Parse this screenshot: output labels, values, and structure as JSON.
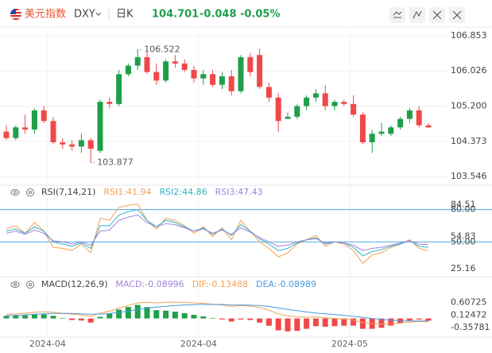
{
  "header": {
    "name": "美元指数",
    "symbol": "DXY",
    "period": "日K",
    "price": "104.701",
    "change": "-0.048",
    "change_pct": "-0.05%"
  },
  "chart_data": [
    {
      "type": "candlestick",
      "up_color": "#1f9f4a",
      "down_color": "#f04848",
      "open": [
        104.6,
        104.45,
        104.7,
        104.65,
        105.1,
        104.85,
        104.35,
        104.3,
        104.25,
        104.4,
        104.15,
        105.3,
        105.25,
        105.95,
        106.15,
        106.35,
        106.0,
        105.8,
        106.25,
        106.2,
        106.05,
        105.85,
        105.95,
        105.7,
        105.9,
        105.55,
        106.35,
        106.4,
        105.65,
        105.4,
        104.9,
        104.95,
        105.2,
        105.4,
        105.5,
        105.2,
        105.3,
        105.25,
        105.0,
        104.35,
        104.55,
        104.55,
        104.7,
        104.9,
        105.1,
        104.75
      ],
      "high": [
        104.75,
        104.75,
        105.0,
        105.15,
        105.2,
        104.95,
        104.45,
        104.4,
        104.55,
        104.45,
        105.35,
        105.4,
        106.05,
        106.2,
        106.522,
        106.45,
        106.2,
        106.3,
        106.4,
        106.3,
        106.15,
        106.05,
        106.05,
        106.0,
        106.05,
        106.4,
        106.45,
        106.55,
        105.75,
        105.5,
        105.05,
        105.25,
        105.45,
        105.6,
        105.7,
        105.35,
        105.35,
        105.45,
        105.05,
        104.65,
        104.8,
        104.75,
        104.95,
        105.15,
        105.2,
        104.8
      ],
      "low": [
        104.4,
        104.4,
        104.55,
        104.55,
        104.8,
        104.3,
        104.2,
        104.15,
        104.1,
        103.877,
        104.1,
        105.15,
        105.2,
        105.9,
        106.05,
        105.95,
        105.7,
        105.75,
        106.1,
        106.0,
        105.75,
        105.7,
        105.65,
        105.6,
        105.45,
        105.5,
        105.9,
        105.6,
        105.3,
        104.6,
        104.9,
        104.9,
        105.1,
        105.3,
        105.1,
        105.1,
        105.2,
        104.95,
        104.3,
        104.1,
        104.5,
        104.5,
        104.65,
        104.8,
        104.7,
        104.69
      ],
      "close": [
        104.45,
        104.7,
        104.65,
        105.1,
        104.85,
        104.35,
        104.3,
        104.25,
        104.4,
        104.2,
        105.3,
        105.25,
        105.95,
        106.15,
        106.35,
        106.0,
        105.8,
        106.25,
        106.2,
        106.05,
        105.85,
        105.95,
        105.7,
        105.9,
        105.55,
        106.35,
        106.0,
        105.65,
        105.4,
        104.85,
        104.95,
        105.2,
        105.4,
        105.5,
        105.2,
        105.3,
        105.25,
        105.0,
        104.35,
        104.55,
        104.6,
        104.7,
        104.9,
        105.1,
        104.75,
        104.701
      ],
      "ylim": [
        103.36,
        107.02
      ],
      "yticks": [
        106.853,
        106.026,
        {
          "value": 105.2,
          "label": "105.200"
        },
        104.373,
        103.546
      ],
      "annotations": [
        {
          "label": "106.522",
          "value": 106.522,
          "index": 14
        },
        {
          "label": "103.877",
          "value": 103.877,
          "index": 9
        }
      ],
      "xticks": [
        {
          "value": 4.4,
          "label": "2024-04"
        },
        {
          "value": 20.5,
          "label": "2024-04"
        },
        {
          "value": 36.6,
          "label": "2024-05"
        }
      ],
      "grid": true
    },
    {
      "type": "line",
      "title": "RSI(7,14,21)",
      "ylim": [
        20,
        90
      ],
      "yticks": [
        {
          "value": 80,
          "label": "80.00"
        },
        84.51,
        54.83,
        {
          "value": 50,
          "label": "50.00"
        },
        25.16
      ],
      "ref_lines": [
        80,
        50
      ],
      "ref_color": "#4aa8e8",
      "series": [
        {
          "name": "RSI1:41.94",
          "color": "#f5a050",
          "values": [
            62,
            65,
            58,
            68,
            60,
            45,
            44,
            42,
            48,
            40,
            72,
            70,
            82,
            84,
            85,
            70,
            62,
            72,
            70,
            65,
            58,
            64,
            55,
            63,
            52,
            70,
            60,
            50,
            44,
            36,
            40,
            48,
            52,
            56,
            46,
            50,
            48,
            42,
            30,
            38,
            40,
            45,
            48,
            52,
            44,
            41.94
          ]
        },
        {
          "name": "RSI2:44.86",
          "color": "#2fb3c6",
          "values": [
            60,
            62,
            58,
            64,
            60,
            50,
            48,
            46,
            49,
            44,
            65,
            65,
            75,
            78,
            80,
            70,
            64,
            70,
            68,
            64,
            60,
            63,
            57,
            62,
            56,
            66,
            60,
            53,
            48,
            42,
            44,
            49,
            52,
            54,
            48,
            50,
            49,
            45,
            37,
            41,
            43,
            46,
            48,
            51,
            46,
            44.86
          ]
        },
        {
          "name": "RSI3:47.43",
          "color": "#a083dc",
          "values": [
            58,
            60,
            57,
            61,
            58,
            51,
            50,
            48,
            50,
            47,
            60,
            61,
            70,
            73,
            75,
            68,
            64,
            67,
            66,
            63,
            60,
            62,
            58,
            61,
            57,
            63,
            59,
            54,
            50,
            46,
            47,
            50,
            52,
            53,
            49,
            50,
            49,
            47,
            42,
            44,
            45,
            47,
            49,
            51,
            48,
            47.43
          ]
        }
      ]
    },
    {
      "type": "macd",
      "title": "MACD(12,26,9)",
      "ylim": [
        -0.72,
        1.09
      ],
      "yticks": [
        0.60725,
        0.12472,
        -0.35781
      ],
      "series": [
        {
          "name": "MACD:-0.08996",
          "color": "#a083dc",
          "up_color": "#1f9f4a",
          "down_color": "#f04848",
          "values": [
            0.1,
            0.12,
            0.12,
            0.16,
            0.16,
            0.1,
            0.02,
            -0.06,
            -0.08,
            -0.16,
            0.06,
            0.18,
            0.34,
            0.44,
            0.52,
            0.44,
            0.32,
            0.3,
            0.26,
            0.2,
            0.14,
            0.08,
            0.02,
            -0.04,
            -0.12,
            -0.04,
            -0.06,
            -0.16,
            -0.28,
            -0.46,
            -0.5,
            -0.48,
            -0.4,
            -0.3,
            -0.32,
            -0.3,
            -0.28,
            -0.28,
            -0.4,
            -0.4,
            -0.36,
            -0.28,
            -0.18,
            -0.08,
            -0.04,
            -0.08996
          ]
        },
        {
          "name": "DIF:-0.13488",
          "color": "#f5a050",
          "values": [
            0.15,
            0.18,
            0.2,
            0.24,
            0.26,
            0.24,
            0.2,
            0.16,
            0.14,
            0.08,
            0.2,
            0.28,
            0.4,
            0.5,
            0.6,
            0.62,
            0.6,
            0.62,
            0.63,
            0.62,
            0.6,
            0.58,
            0.54,
            0.52,
            0.46,
            0.5,
            0.48,
            0.42,
            0.32,
            0.18,
            0.1,
            0.06,
            0.05,
            0.06,
            0.02,
            0.0,
            -0.02,
            -0.06,
            -0.16,
            -0.2,
            -0.22,
            -0.21,
            -0.18,
            -0.14,
            -0.12,
            -0.13488
          ]
        },
        {
          "name": "DEA:-0.08989",
          "color": "#4a9be0",
          "values": [
            0.1,
            0.12,
            0.14,
            0.16,
            0.18,
            0.19,
            0.19,
            0.19,
            0.18,
            0.16,
            0.17,
            0.19,
            0.23,
            0.28,
            0.34,
            0.4,
            0.44,
            0.47,
            0.5,
            0.52,
            0.53,
            0.54,
            0.54,
            0.54,
            0.52,
            0.52,
            0.51,
            0.5,
            0.46,
            0.41,
            0.35,
            0.3,
            0.25,
            0.21,
            0.18,
            0.15,
            0.12,
            0.08,
            0.04,
            0.0,
            -0.04,
            -0.07,
            -0.09,
            -0.1,
            -0.1,
            -0.08989
          ]
        }
      ]
    }
  ]
}
